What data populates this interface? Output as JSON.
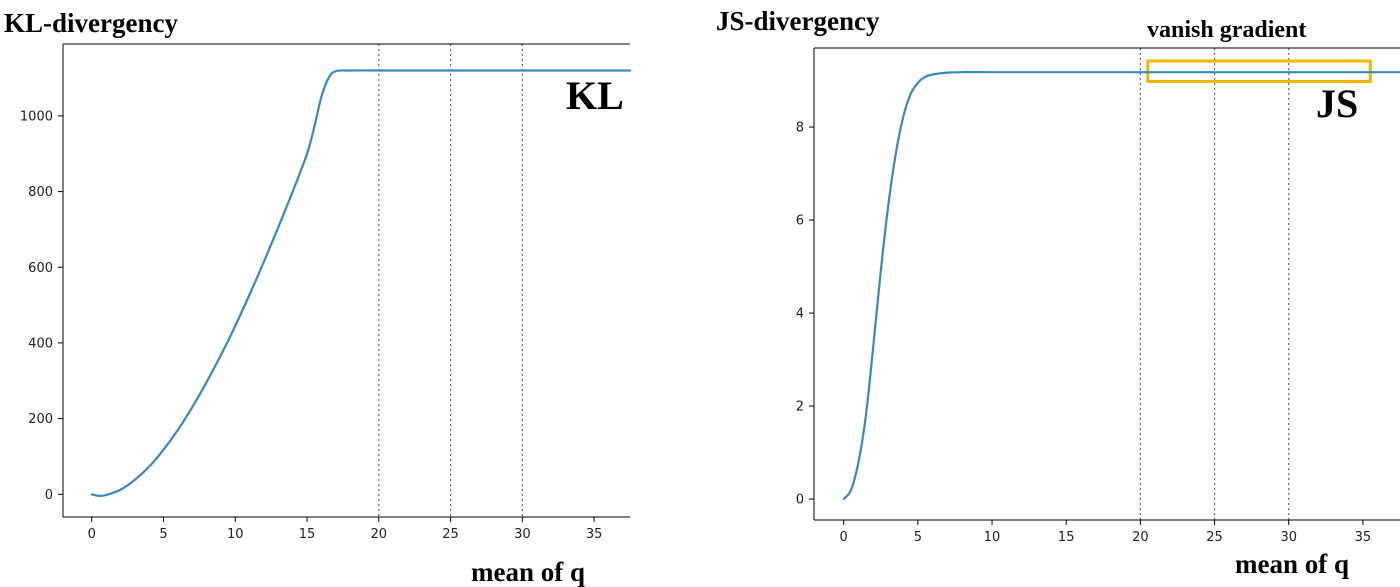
{
  "chart_data": [
    {
      "type": "line",
      "title": "KL-divergency",
      "xlabel": "mean of q",
      "ylabel": "",
      "xlim": [
        -2,
        37.5
      ],
      "ylim": [
        -60,
        1190
      ],
      "xticks": [
        0,
        5,
        10,
        15,
        20,
        25,
        30,
        35
      ],
      "yticks": [
        0,
        200,
        400,
        600,
        800,
        1000
      ],
      "vlines": [
        20,
        25,
        30
      ],
      "annotation": "KL",
      "line_color": "#3a87c0",
      "series": [
        {
          "x": [
            0,
            0.5,
            1,
            2,
            3,
            4,
            5,
            6,
            7,
            8,
            9,
            10,
            11,
            12,
            13,
            14,
            15,
            15.5,
            16,
            16.5,
            17,
            18,
            20,
            25,
            30,
            35,
            37.5
          ],
          "values": [
            0,
            -4,
            -2,
            12,
            38,
            73,
            118,
            170,
            230,
            296,
            368,
            445,
            528,
            615,
            706,
            800,
            900,
            970,
            1050,
            1100,
            1118,
            1120,
            1120,
            1120,
            1120,
            1120,
            1120
          ]
        }
      ]
    },
    {
      "type": "line",
      "title": "JS-divergency",
      "xlabel": "mean of q",
      "ylabel": "",
      "xlim": [
        -2,
        37.5
      ],
      "ylim": [
        -0.45,
        9.7
      ],
      "xticks": [
        0,
        5,
        10,
        15,
        20,
        25,
        30,
        35
      ],
      "yticks": [
        0,
        2,
        4,
        6,
        8
      ],
      "vlines": [
        20,
        25,
        30
      ],
      "annotation": "JS",
      "highlight_label": "vanish gradient",
      "highlight_color": "#f2b705",
      "highlight_x": [
        20.5,
        35.5
      ],
      "highlight_y": [
        8.98,
        9.42
      ],
      "line_color": "#3a87c0",
      "series": [
        {
          "x": [
            0,
            0.5,
            1,
            1.5,
            2,
            2.5,
            3,
            3.5,
            4,
            4.5,
            5,
            5.5,
            6,
            7,
            8,
            10,
            15,
            20,
            25,
            30,
            35,
            37.5
          ],
          "values": [
            0,
            0.2,
            0.8,
            1.8,
            3.3,
            4.9,
            6.3,
            7.4,
            8.2,
            8.7,
            8.95,
            9.08,
            9.13,
            9.17,
            9.18,
            9.18,
            9.18,
            9.18,
            9.18,
            9.18,
            9.18,
            9.18
          ]
        }
      ]
    }
  ]
}
